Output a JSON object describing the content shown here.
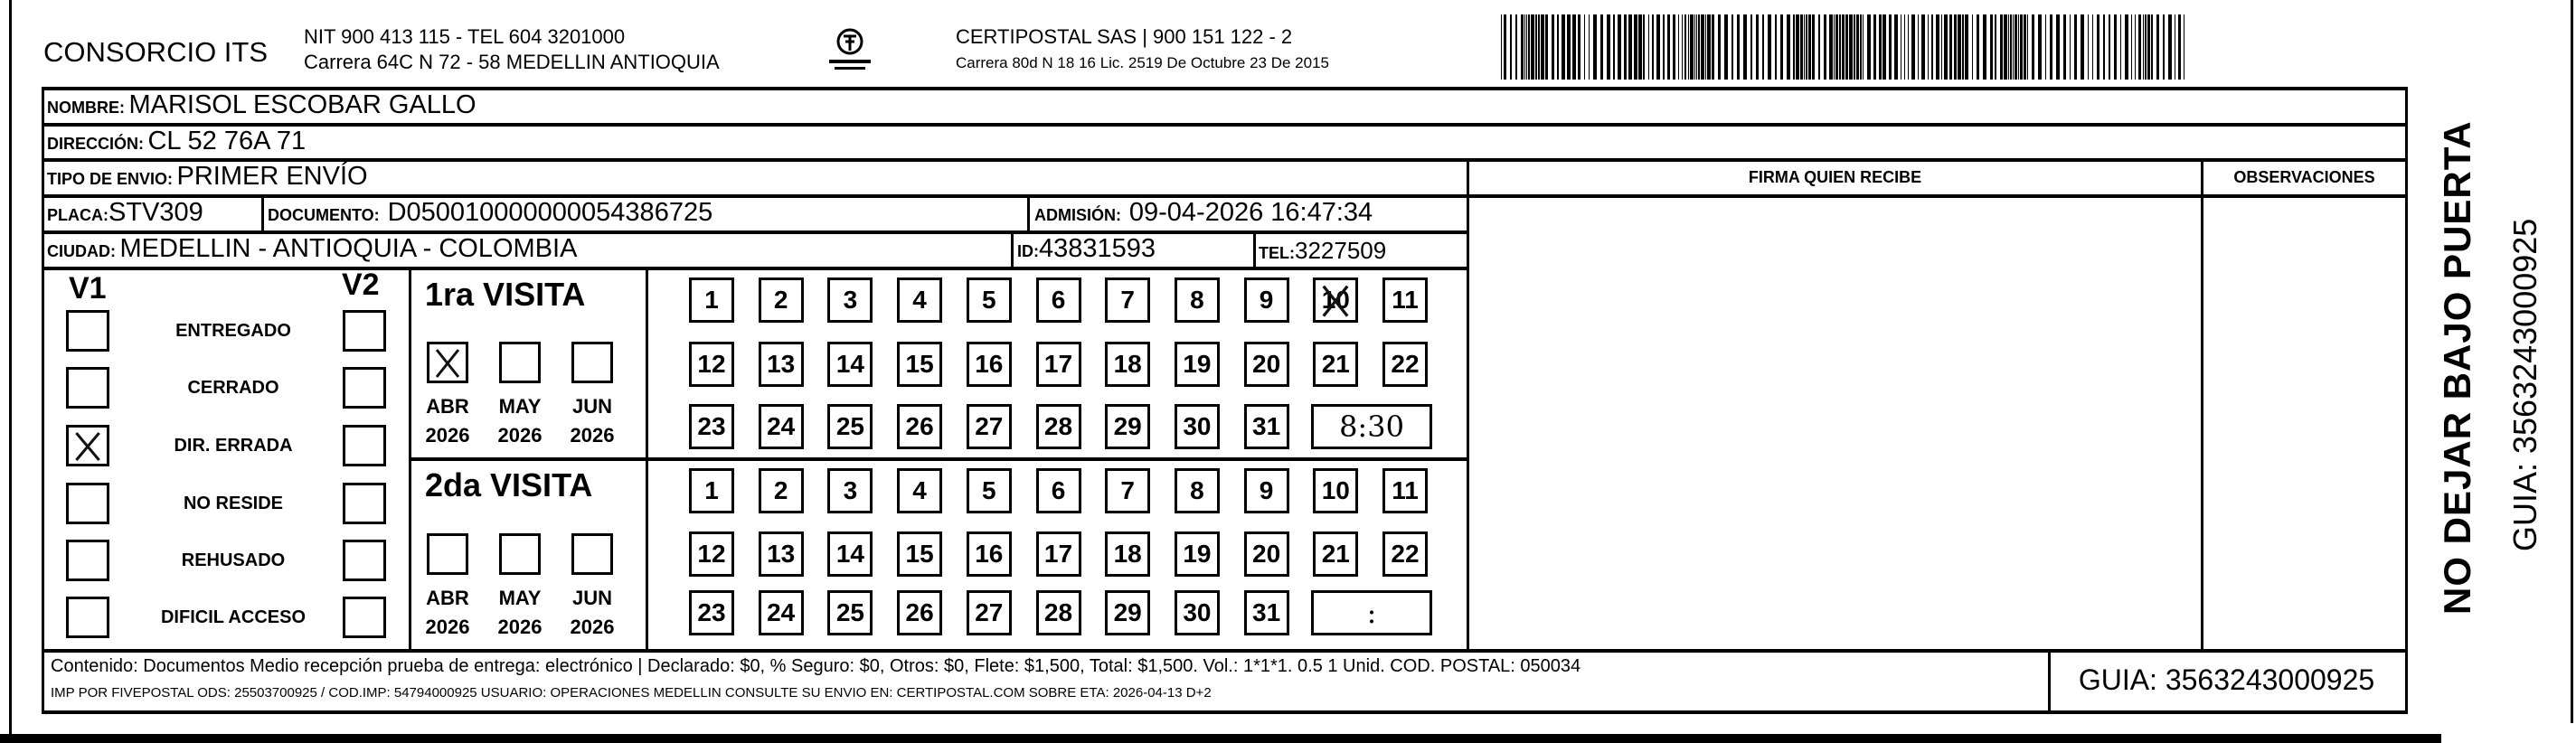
{
  "header": {
    "company": "CONSORCIO ITS",
    "company_line1": "NIT 900 413 115 - TEL 604 3201000",
    "company_line2": "Carrera 64C N 72 - 58 MEDELLIN ANTIOQUIA",
    "logo_text": "CERTIPOSTAL",
    "carrier_line1": "CERTIPOSTAL SAS | 900 151 122 - 2",
    "carrier_line2": "Carrera 80d N 18 16  Lic. 2519 De Octubre 23 De 2015",
    "barcode_value": "3563243000925"
  },
  "fields": {
    "nombre_label": "NOMBRE:",
    "nombre": "MARISOL ESCOBAR GALLO",
    "direccion_label": "DIRECCIÓN:",
    "direccion": "CL 52 76A 71",
    "tipo_label": "TIPO DE ENVIO:",
    "tipo": "PRIMER ENVÍO",
    "placa_label": "PLACA:",
    "placa": "STV309",
    "documento_label": "DOCUMENTO:",
    "documento": "D050010000000054386725",
    "admision_label": "ADMISIÓN:",
    "admision": "09-04-2026 16:47:34",
    "ciudad_label": "CIUDAD:",
    "ciudad": "MEDELLIN - ANTIOQUIA - COLOMBIA",
    "id_label": "ID:",
    "id": "43831593",
    "tel_label": "TEL:",
    "tel": "3227509"
  },
  "signature": {
    "firma_header": "FIRMA QUIEN RECIBE",
    "observaciones_header": "OBSERVACIONES"
  },
  "status": {
    "v1_label": "V1",
    "v2_label": "V2",
    "options": [
      {
        "label": "ENTREGADO",
        "v1": false,
        "v2": false
      },
      {
        "label": "CERRADO",
        "v1": false,
        "v2": false
      },
      {
        "label": "DIR. ERRADA",
        "v1": true,
        "v2": false
      },
      {
        "label": "NO RESIDE",
        "v1": false,
        "v2": false
      },
      {
        "label": "REHUSADO",
        "v1": false,
        "v2": false
      },
      {
        "label": "DIFICIL ACCESO",
        "v1": false,
        "v2": false
      }
    ]
  },
  "visits": [
    {
      "title": "1ra VISITA",
      "months": [
        {
          "month": "ABR",
          "year": "2026",
          "checked": true
        },
        {
          "month": "MAY",
          "year": "2026",
          "checked": false
        },
        {
          "month": "JUN",
          "year": "2026",
          "checked": false
        }
      ],
      "checked_day": 10,
      "time": "8:30"
    },
    {
      "title": "2da VISITA",
      "months": [
        {
          "month": "ABR",
          "year": "2026",
          "checked": false
        },
        {
          "month": "MAY",
          "year": "2026",
          "checked": false
        },
        {
          "month": "JUN",
          "year": "2026",
          "checked": false
        }
      ],
      "checked_day": null,
      "time": ":"
    }
  ],
  "days": [
    1,
    2,
    3,
    4,
    5,
    6,
    7,
    8,
    9,
    10,
    11,
    12,
    13,
    14,
    15,
    16,
    17,
    18,
    19,
    20,
    21,
    22,
    23,
    24,
    25,
    26,
    27,
    28,
    29,
    30,
    31
  ],
  "side": {
    "warning": "NO DEJAR BAJO PUERTA",
    "guia": "GUIA: 3563243000925"
  },
  "footer": {
    "line1": "Contenido: Documentos Medio recepción prueba de entrega: electrónico | Declarado: $0, % Seguro: $0, Otros: $0, Flete: $1,500, Total: $1,500. Vol.: 1*1*1. 0.5  1 Unid. COD. POSTAL: 050034",
    "line2": "IMP POR FIVEPOSTAL ODS: 25503700925 / COD.IMP: 54794000925 USUARIO: OPERACIONES MEDELLIN CONSULTE SU ENVIO EN: CERTIPOSTAL.COM SOBRE ETA: 2026-04-13 D+2",
    "guia": "GUIA: 3563243000925"
  }
}
